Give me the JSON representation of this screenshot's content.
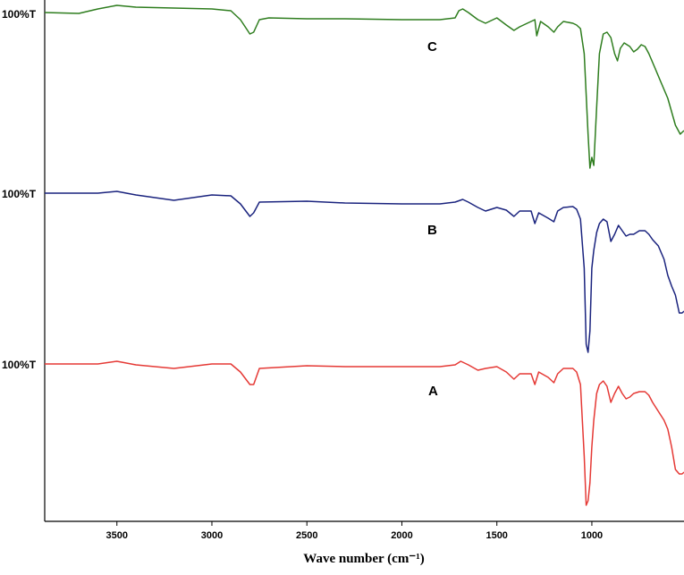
{
  "chart_data": {
    "type": "line",
    "title": "",
    "xlabel": "Wave number (cm⁻¹)",
    "ylabel": "",
    "xlim": [
      3880,
      515
    ],
    "x_reversed": true,
    "x_ticks": [
      3500,
      3000,
      2500,
      2000,
      1500,
      1000
    ],
    "x_tick_labels": [
      "3500",
      "3000",
      "2500",
      "2000",
      "1500",
      "1000"
    ],
    "grid": false,
    "legend": "none",
    "baseline_label": "100%T",
    "series": [
      {
        "name": "C",
        "color": "#2e7d1e",
        "points": [
          [
            3880,
            14
          ],
          [
            3700,
            15
          ],
          [
            3600,
            10
          ],
          [
            3500,
            6
          ],
          [
            3400,
            8
          ],
          [
            3200,
            9
          ],
          [
            3000,
            10
          ],
          [
            2900,
            12
          ],
          [
            2850,
            22
          ],
          [
            2800,
            38
          ],
          [
            2780,
            36
          ],
          [
            2750,
            22
          ],
          [
            2700,
            20
          ],
          [
            2500,
            21
          ],
          [
            2300,
            21
          ],
          [
            2000,
            22
          ],
          [
            1800,
            22
          ],
          [
            1720,
            20
          ],
          [
            1700,
            12
          ],
          [
            1680,
            10
          ],
          [
            1650,
            14
          ],
          [
            1600,
            22
          ],
          [
            1560,
            26
          ],
          [
            1500,
            20
          ],
          [
            1450,
            28
          ],
          [
            1410,
            34
          ],
          [
            1380,
            30
          ],
          [
            1300,
            22
          ],
          [
            1290,
            40
          ],
          [
            1270,
            24
          ],
          [
            1230,
            30
          ],
          [
            1200,
            36
          ],
          [
            1180,
            30
          ],
          [
            1150,
            24
          ],
          [
            1100,
            26
          ],
          [
            1080,
            28
          ],
          [
            1060,
            32
          ],
          [
            1040,
            60
          ],
          [
            1020,
            150
          ],
          [
            1010,
            188
          ],
          [
            1000,
            176
          ],
          [
            990,
            185
          ],
          [
            975,
            120
          ],
          [
            960,
            60
          ],
          [
            940,
            38
          ],
          [
            920,
            36
          ],
          [
            900,
            42
          ],
          [
            880,
            60
          ],
          [
            865,
            68
          ],
          [
            850,
            54
          ],
          [
            830,
            48
          ],
          [
            800,
            52
          ],
          [
            780,
            58
          ],
          [
            760,
            55
          ],
          [
            740,
            50
          ],
          [
            720,
            52
          ],
          [
            700,
            60
          ],
          [
            670,
            75
          ],
          [
            640,
            90
          ],
          [
            600,
            110
          ],
          [
            560,
            140
          ],
          [
            535,
            150
          ],
          [
            525,
            148
          ],
          [
            515,
            146
          ]
        ]
      },
      {
        "name": "B",
        "color": "#1a237e",
        "points": [
          [
            3880,
            216
          ],
          [
            3700,
            216
          ],
          [
            3600,
            216
          ],
          [
            3500,
            214
          ],
          [
            3400,
            218
          ],
          [
            3200,
            224
          ],
          [
            3000,
            218
          ],
          [
            2900,
            219
          ],
          [
            2850,
            228
          ],
          [
            2800,
            242
          ],
          [
            2780,
            238
          ],
          [
            2750,
            226
          ],
          [
            2500,
            225
          ],
          [
            2300,
            227
          ],
          [
            2000,
            228
          ],
          [
            1800,
            228
          ],
          [
            1720,
            226
          ],
          [
            1680,
            223
          ],
          [
            1650,
            226
          ],
          [
            1600,
            232
          ],
          [
            1560,
            236
          ],
          [
            1500,
            232
          ],
          [
            1450,
            235
          ],
          [
            1410,
            242
          ],
          [
            1380,
            236
          ],
          [
            1320,
            236
          ],
          [
            1300,
            250
          ],
          [
            1280,
            238
          ],
          [
            1230,
            244
          ],
          [
            1200,
            248
          ],
          [
            1180,
            236
          ],
          [
            1150,
            232
          ],
          [
            1100,
            231
          ],
          [
            1080,
            234
          ],
          [
            1060,
            245
          ],
          [
            1040,
            300
          ],
          [
            1030,
            385
          ],
          [
            1020,
            394
          ],
          [
            1010,
            370
          ],
          [
            1000,
            300
          ],
          [
            990,
            280
          ],
          [
            975,
            260
          ],
          [
            960,
            250
          ],
          [
            940,
            245
          ],
          [
            920,
            248
          ],
          [
            900,
            270
          ],
          [
            880,
            262
          ],
          [
            860,
            252
          ],
          [
            840,
            258
          ],
          [
            820,
            264
          ],
          [
            800,
            262
          ],
          [
            780,
            262
          ],
          [
            750,
            258
          ],
          [
            720,
            258
          ],
          [
            700,
            262
          ],
          [
            680,
            268
          ],
          [
            650,
            275
          ],
          [
            620,
            290
          ],
          [
            600,
            308
          ],
          [
            580,
            320
          ],
          [
            560,
            330
          ],
          [
            540,
            350
          ],
          [
            525,
            350
          ],
          [
            515,
            348
          ]
        ]
      },
      {
        "name": "A",
        "color": "#e53935",
        "points": [
          [
            3880,
            407
          ],
          [
            3700,
            407
          ],
          [
            3600,
            407
          ],
          [
            3500,
            404
          ],
          [
            3400,
            408
          ],
          [
            3200,
            412
          ],
          [
            3000,
            407
          ],
          [
            2900,
            407
          ],
          [
            2850,
            416
          ],
          [
            2800,
            430
          ],
          [
            2780,
            430
          ],
          [
            2750,
            412
          ],
          [
            2500,
            409
          ],
          [
            2300,
            410
          ],
          [
            2000,
            410
          ],
          [
            1800,
            410
          ],
          [
            1720,
            408
          ],
          [
            1690,
            404
          ],
          [
            1650,
            408
          ],
          [
            1600,
            414
          ],
          [
            1560,
            412
          ],
          [
            1500,
            410
          ],
          [
            1450,
            416
          ],
          [
            1410,
            424
          ],
          [
            1380,
            418
          ],
          [
            1320,
            418
          ],
          [
            1300,
            430
          ],
          [
            1280,
            416
          ],
          [
            1230,
            422
          ],
          [
            1200,
            428
          ],
          [
            1180,
            418
          ],
          [
            1150,
            412
          ],
          [
            1100,
            412
          ],
          [
            1080,
            416
          ],
          [
            1060,
            430
          ],
          [
            1040,
            510
          ],
          [
            1030,
            565
          ],
          [
            1020,
            560
          ],
          [
            1010,
            540
          ],
          [
            1000,
            500
          ],
          [
            990,
            470
          ],
          [
            975,
            440
          ],
          [
            960,
            430
          ],
          [
            940,
            426
          ],
          [
            920,
            432
          ],
          [
            900,
            450
          ],
          [
            880,
            440
          ],
          [
            860,
            432
          ],
          [
            840,
            440
          ],
          [
            820,
            446
          ],
          [
            800,
            444
          ],
          [
            780,
            440
          ],
          [
            750,
            438
          ],
          [
            720,
            438
          ],
          [
            700,
            442
          ],
          [
            680,
            450
          ],
          [
            650,
            460
          ],
          [
            620,
            470
          ],
          [
            600,
            480
          ],
          [
            580,
            500
          ],
          [
            560,
            525
          ],
          [
            540,
            530
          ],
          [
            525,
            530
          ],
          [
            515,
            528
          ]
        ]
      }
    ]
  },
  "baseline_labels": [
    "100%T",
    "100%T",
    "100%T"
  ],
  "series_labels": [
    "C",
    "B",
    "A"
  ]
}
